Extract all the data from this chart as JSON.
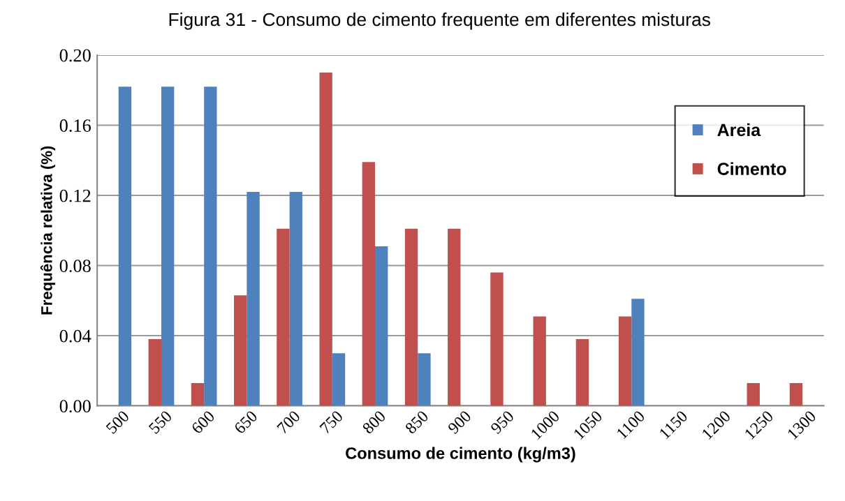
{
  "chart_data": {
    "type": "bar",
    "title": "Figura 31 - Consumo de cimento frequente em diferentes misturas",
    "xlabel": "Consumo de cimento (kg/m3)",
    "ylabel": "Frequência relativa (%)",
    "categories": [
      "500",
      "550",
      "600",
      "650",
      "700",
      "750",
      "800",
      "850",
      "900",
      "950",
      "1000",
      "1050",
      "1100",
      "1150",
      "1200",
      "1250",
      "1300"
    ],
    "series": [
      {
        "name": "Areia",
        "color": "#4f81bd",
        "values": [
          0.182,
          0.182,
          0.182,
          0.122,
          0.122,
          0.03,
          0.091,
          0.03,
          0,
          0,
          0,
          0,
          0.061,
          0,
          0,
          0,
          0
        ]
      },
      {
        "name": "Cimento",
        "color": "#c0504d",
        "values": [
          0,
          0.038,
          0.013,
          0.063,
          0.101,
          0.19,
          0.139,
          0.101,
          0.101,
          0.076,
          0.051,
          0.038,
          0.051,
          0,
          0,
          0.013,
          0.013
        ]
      }
    ],
    "ylim": [
      0,
      0.2
    ],
    "yticks": [
      {
        "value": 0,
        "label": "0.00"
      },
      {
        "value": 0.04,
        "label": "0.04"
      },
      {
        "value": 0.08,
        "label": "0.08"
      },
      {
        "value": 0.12,
        "label": "0.12"
      },
      {
        "value": 0.16,
        "label": "0.16"
      },
      {
        "value": 0.2,
        "label": "0.20"
      }
    ],
    "grid": "y",
    "legend": "top right"
  }
}
